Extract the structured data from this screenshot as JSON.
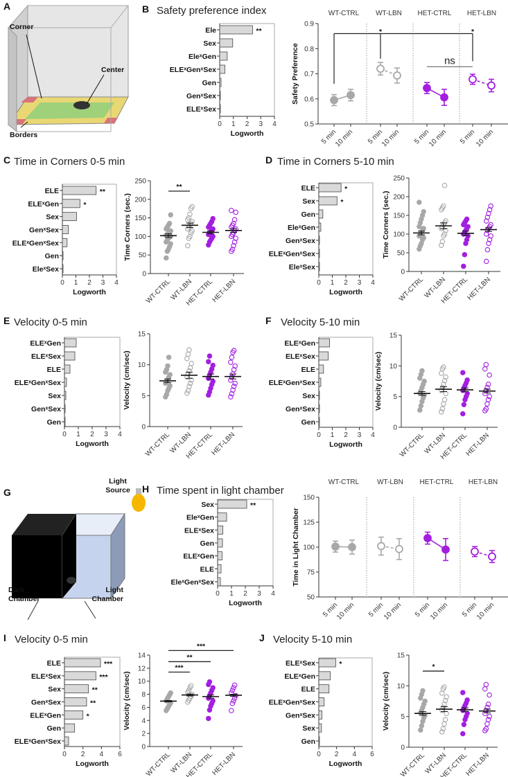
{
  "illustrations": {
    "A": {
      "letter": "A",
      "labels": [
        "Corner",
        "Center",
        "Borders"
      ]
    },
    "G": {
      "letter": "G",
      "labels": [
        "Light",
        "Source",
        "Dark",
        "Chamber",
        "Light",
        "Chamber"
      ]
    }
  },
  "colors": {
    "wt": "#a8a8a8",
    "het": "#a31fe0",
    "bar": "#d9d9d9"
  },
  "chart_data": [
    {
      "panel": "B",
      "letter": "B",
      "title": "Safety preference index",
      "type": "bar",
      "orientation": "horizontal",
      "xlabel": "Logworth",
      "xlim": [
        0,
        4
      ],
      "xticks": [
        "0",
        "1",
        "2",
        "3",
        "4"
      ],
      "categories": [
        "Ele",
        "Sex",
        "EleˣGen",
        "ELEˣGenˣSex",
        "Gen",
        "GenˣSex",
        "ELEˣSex"
      ],
      "values": [
        2.4,
        0.95,
        0.55,
        0.38,
        0.1,
        0.03,
        0.02
      ],
      "significance": [
        "**",
        "",
        "",
        "",
        "",
        "",
        ""
      ]
    },
    {
      "panel": "B",
      "type": "line",
      "ylabel": "Safety Preference",
      "ylim": [
        0.5,
        0.9
      ],
      "yticks": [
        "0.5",
        "0.6",
        "0.7",
        "0.8",
        "0.9"
      ],
      "groups": [
        "WT-CTRL",
        "WT-LBN",
        "HET-CTRL",
        "HET-LBN"
      ],
      "timepoints": [
        "5 min",
        "10 min"
      ],
      "series": [
        {
          "name": "WT-CTRL",
          "values": [
            0.595,
            0.615
          ],
          "sem": [
            0.022,
            0.023
          ],
          "color": "wt",
          "filled": true
        },
        {
          "name": "WT-LBN",
          "values": [
            0.72,
            0.693
          ],
          "sem": [
            0.025,
            0.03
          ],
          "color": "wt",
          "filled": false
        },
        {
          "name": "HET-CTRL",
          "values": [
            0.643,
            0.606
          ],
          "sem": [
            0.022,
            0.032
          ],
          "color": "het",
          "filled": true
        },
        {
          "name": "HET-LBN",
          "values": [
            0.678,
            0.653
          ],
          "sem": [
            0.02,
            0.025
          ],
          "color": "het",
          "filled": false
        }
      ],
      "bracket": {
        "points": [
          0,
          2,
          6
        ],
        "top": 0.86,
        "ends": [
          0.66,
          0.76,
          0.75
        ]
      },
      "annotations": [
        {
          "at": 2,
          "y": 0.875,
          "label": "*"
        },
        {
          "at": 6,
          "y": 0.875,
          "label": "*"
        },
        {
          "from": 4,
          "to": 6,
          "y": 0.728,
          "label": "ns"
        }
      ]
    },
    {
      "panel": "C",
      "letter": "C",
      "title": "Time in Corners 0-5 min",
      "type": "bar",
      "orientation": "horizontal",
      "xlabel": "Logworth",
      "xlim": [
        0,
        4
      ],
      "xticks": [
        "0",
        "1",
        "2",
        "3",
        "4"
      ],
      "categories": [
        "ELE",
        "ELEˣGen",
        "Sex",
        "GenˣSex",
        "ELEˣGenˣSex",
        "Gen",
        "EleˣSex"
      ],
      "values": [
        2.5,
        1.3,
        1.05,
        0.45,
        0.35,
        0.05,
        0.02
      ],
      "significance": [
        "**",
        "*",
        "",
        "",
        "",
        "",
        ""
      ]
    },
    {
      "panel": "C",
      "type": "scatter",
      "ylabel": "Time Corners (sec.)",
      "ylim": [
        0,
        250
      ],
      "yticks": [
        "0",
        "50",
        "100",
        "150",
        "200",
        "250"
      ],
      "categories": [
        "WT-CTRL",
        "WT-LBN",
        "HET-CTRL",
        "HET-LBN"
      ],
      "points": [
        [
          42,
          60,
          65,
          72,
          80,
          85,
          90,
          95,
          98,
          100,
          103,
          105,
          108,
          110,
          115,
          120,
          125,
          130,
          135,
          158
        ],
        [
          75,
          95,
          100,
          110,
          115,
          120,
          125,
          130,
          135,
          140,
          145,
          150,
          160,
          175,
          180
        ],
        [
          77,
          85,
          90,
          95,
          100,
          105,
          110,
          112,
          115,
          120,
          125,
          130,
          135,
          140,
          148
        ],
        [
          60,
          65,
          75,
          85,
          95,
          100,
          105,
          110,
          115,
          120,
          125,
          130,
          135,
          145,
          165,
          170
        ]
      ],
      "means": [
        102,
        130,
        111,
        116
      ],
      "sem": [
        5,
        6,
        4,
        5
      ],
      "brackets": [
        {
          "from": 0,
          "to": 1,
          "y": 222,
          "label": "**"
        }
      ]
    },
    {
      "panel": "D",
      "letter": "D",
      "title": "Time in Corners 5-10 min",
      "type": "bar",
      "orientation": "horizontal",
      "xlabel": "Logworth",
      "xlim": [
        0,
        4
      ],
      "xticks": [
        "0",
        "1",
        "2",
        "3",
        "4"
      ],
      "categories": [
        "ELE",
        "Sex",
        "Gen",
        "EleˣGen",
        "GenˣSex",
        "ELEˣGenˣSex",
        "EleˣSex"
      ],
      "values": [
        1.65,
        1.35,
        0.3,
        0.15,
        0.02,
        0.02,
        0.02
      ],
      "significance": [
        "*",
        "*",
        "",
        "",
        "",
        "",
        ""
      ]
    },
    {
      "panel": "D",
      "type": "scatter",
      "ylabel": "Time Corners (sec.)",
      "ylim": [
        0,
        250
      ],
      "yticks": [
        "0",
        "50",
        "100",
        "150",
        "200",
        "250"
      ],
      "categories": [
        "WT-CTRL",
        "WT-LBN",
        "HET-CTRL",
        "HET-LBN"
      ],
      "points": [
        [
          60,
          68,
          75,
          85,
          90,
          95,
          100,
          105,
          110,
          115,
          120,
          130,
          140,
          150,
          160,
          185
        ],
        [
          70,
          80,
          95,
          100,
          110,
          115,
          120,
          125,
          130,
          135,
          165,
          170,
          175,
          230
        ],
        [
          14,
          45,
          75,
          85,
          95,
          100,
          105,
          110,
          115,
          120,
          125,
          130,
          135,
          140
        ],
        [
          27,
          58,
          75,
          85,
          95,
          100,
          110,
          115,
          120,
          125,
          135,
          145,
          155,
          165,
          175
        ]
      ],
      "means": [
        103,
        122,
        102,
        112
      ],
      "sem": [
        5,
        8,
        6,
        5
      ],
      "brackets": []
    },
    {
      "panel": "E",
      "letter": "E",
      "title": "Velocity 0-5 min",
      "type": "bar",
      "orientation": "horizontal",
      "xlabel": "Logworth",
      "xlim": [
        0,
        4
      ],
      "xticks": [
        "0",
        "1",
        "2",
        "3",
        "4"
      ],
      "categories": [
        "ELEˣGen",
        "ELEˣSex",
        "ELE",
        "ELEˣGenˣSex",
        "Sex",
        "GenˣSex",
        "Gen"
      ],
      "values": [
        0.85,
        0.75,
        0.4,
        0.15,
        0.1,
        0.05,
        0.05
      ],
      "significance": [
        "",
        "",
        "",
        "",
        "",
        "",
        ""
      ]
    },
    {
      "panel": "E",
      "type": "scatter",
      "ylabel": "Velocity  (cm/sec)",
      "ylim": [
        0,
        15
      ],
      "yticks": [
        "0",
        "5",
        "10",
        "15"
      ],
      "categories": [
        "WT-CTRL",
        "WT-LBN",
        "HET-CTRL",
        "HET-LBN"
      ],
      "points": [
        [
          4.8,
          5.2,
          5.8,
          6.2,
          6.6,
          7,
          7.3,
          7.6,
          8,
          8.4,
          8.8,
          9.2,
          9.8,
          11.2
        ],
        [
          5.4,
          5.8,
          6.5,
          7,
          7.5,
          8,
          8.5,
          9,
          9.5,
          10.2,
          11,
          11.7,
          12.4
        ],
        [
          5.1,
          5.6,
          6.2,
          6.8,
          7.3,
          7.8,
          8.3,
          8.8,
          9.3,
          9.9,
          10.5,
          11.4
        ],
        [
          4.8,
          5.3,
          5.9,
          6.5,
          7,
          7.5,
          8,
          8.5,
          9.2,
          9.8,
          10.4,
          11.2,
          12,
          12.3
        ]
      ],
      "means": [
        7.4,
        8.3,
        8.1,
        8.1
      ],
      "sem": [
        0.3,
        0.5,
        0.4,
        0.4
      ],
      "brackets": []
    },
    {
      "panel": "F",
      "letter": "F",
      "title": "Velocity 5-10 min",
      "type": "bar",
      "orientation": "horizontal",
      "xlabel": "Logworth",
      "xlim": [
        0,
        4
      ],
      "xticks": [
        "0",
        "1",
        "2",
        "3",
        "4"
      ],
      "categories": [
        "ELEˣGen",
        "ELEˣSex",
        "ELE",
        "ELEˣGenˣSex",
        "Sex",
        "GenˣSex",
        "Gen"
      ],
      "values": [
        0.8,
        0.7,
        0.35,
        0.15,
        0.05,
        0.03,
        0.03
      ],
      "significance": [
        "",
        "",
        "",
        "",
        "",
        "",
        ""
      ]
    },
    {
      "panel": "F",
      "type": "scatter",
      "ylabel": "Velocity  (cm/sec)",
      "ylim": [
        0,
        15
      ],
      "yticks": [
        "0",
        "5",
        "10",
        "15"
      ],
      "categories": [
        "WT-CTRL",
        "WT-LBN",
        "HET-CTRL",
        "HET-LBN"
      ],
      "points": [
        [
          2.8,
          3.5,
          4.2,
          4.8,
          5.2,
          5.6,
          6,
          6.5,
          7,
          7.5,
          8,
          8.6,
          9.2
        ],
        [
          2.5,
          3,
          3.8,
          4.5,
          5.5,
          6,
          6.5,
          7,
          7.6,
          8.2,
          8.8,
          9.5,
          9.8
        ],
        [
          2.2,
          3.7,
          4.5,
          5,
          5.5,
          6,
          6.4,
          6.8,
          7.2,
          7.7,
          8.9
        ],
        [
          2.7,
          3,
          3.8,
          4.5,
          5,
          5.5,
          6,
          6.5,
          7,
          8.5,
          9.5,
          10.2
        ]
      ],
      "means": [
        5.5,
        6.2,
        6.1,
        5.9
      ],
      "sem": [
        0.3,
        0.4,
        0.3,
        0.3
      ],
      "brackets": []
    },
    {
      "panel": "H",
      "letter": "H",
      "title": "Time spent in light chamber",
      "type": "bar",
      "orientation": "horizontal",
      "xlabel": "Logworth",
      "xlim": [
        0,
        4
      ],
      "xticks": [
        "0",
        "1",
        "2",
        "3",
        "4"
      ],
      "categories": [
        "Sex",
        "EleˣGen",
        "ELEˣSex",
        "Gen",
        "ELEˣGen",
        "ELE",
        "EleˣGenˣSex"
      ],
      "values": [
        2.1,
        0.65,
        0.38,
        0.35,
        0.32,
        0.25,
        0.2
      ],
      "significance": [
        "**",
        "",
        "",
        "",
        "",
        "",
        ""
      ]
    },
    {
      "panel": "H",
      "type": "line",
      "ylabel": "Time in  Light Chamber",
      "ylim": [
        50,
        150
      ],
      "yticks": [
        "50",
        "75",
        "100",
        "125",
        "150"
      ],
      "groups": [
        "WT-CTRL",
        "WT-LBN",
        "HET-CTRL",
        "HET-LBN"
      ],
      "timepoints": [
        "5 min",
        "10 min"
      ],
      "series": [
        {
          "name": "WT-CTRL",
          "values": [
            100.5,
            100
          ],
          "sem": [
            5.5,
            7
          ],
          "color": "wt",
          "filled": true
        },
        {
          "name": "WT-LBN",
          "values": [
            101,
            98
          ],
          "sem": [
            9,
            10.5
          ],
          "color": "wt",
          "filled": false
        },
        {
          "name": "HET-CTRL",
          "values": [
            109,
            97.5
          ],
          "sem": [
            6,
            11
          ],
          "color": "het",
          "filled": true
        },
        {
          "name": "HET-LBN",
          "values": [
            95.5,
            90.5
          ],
          "sem": [
            5,
            6
          ],
          "color": "het",
          "filled": false
        }
      ]
    },
    {
      "panel": "I",
      "letter": "I",
      "title": "Velocity 0-5 min",
      "type": "bar",
      "orientation": "horizontal",
      "xlabel": "Logworth",
      "xlim": [
        0,
        6
      ],
      "xticks": [
        "0",
        "2",
        "4",
        "6"
      ],
      "categories": [
        "ELE",
        "ELEˣSex",
        "Sex",
        "GenˣSex",
        "ELEˣGen",
        "Gen",
        "ELEˣGenˣSex"
      ],
      "values": [
        3.9,
        3.4,
        2.6,
        2.4,
        2.0,
        1.1,
        0.45
      ],
      "significance": [
        "***",
        "***",
        "**",
        "**",
        "*",
        "",
        ""
      ]
    },
    {
      "panel": "I",
      "type": "scatter",
      "ylabel": "Velocity  (cm/sec)",
      "ylim": [
        0,
        14
      ],
      "yticks": [
        "0",
        "2",
        "4",
        "6",
        "8",
        "10",
        "12",
        "14"
      ],
      "categories": [
        "WT-CTRL",
        "WT-LBN",
        "HET-CTRL",
        "HET-LBN"
      ],
      "points": [
        [
          5.5,
          5.8,
          6.1,
          6.4,
          6.7,
          7,
          7.3,
          7.6,
          7.9,
          8.2
        ],
        [
          6.8,
          7.1,
          7.4,
          7.7,
          8,
          8.3,
          8.6,
          9,
          9.3
        ],
        [
          4.3,
          5.6,
          6.2,
          6.6,
          7,
          7.4,
          7.8,
          8.2,
          8.6,
          9,
          9.5,
          9.9
        ],
        [
          5.5,
          6.6,
          7,
          7.4,
          7.8,
          8.2,
          8.6,
          9,
          9.4
        ]
      ],
      "means": [
        6.95,
        7.9,
        7.65,
        7.85
      ],
      "sem": [
        0.1,
        0.15,
        0.25,
        0.15
      ],
      "brackets": [
        {
          "from": 0,
          "to": 1,
          "y": 11.4,
          "label": "***"
        },
        {
          "from": 0,
          "to": 2,
          "y": 13.0,
          "label": "**"
        },
        {
          "from": 0,
          "to": 3,
          "y": 14.7,
          "label": "***"
        }
      ]
    },
    {
      "panel": "J",
      "letter": "J",
      "title": "Velocity 5-10 min",
      "type": "bar",
      "orientation": "horizontal",
      "xlabel": "Logworth",
      "xlim": [
        0,
        6
      ],
      "xticks": [
        "0",
        "2",
        "4",
        "6"
      ],
      "categories": [
        "ELEˣSex",
        "ELEˣGen",
        "ELE",
        "ELEˣGenˣSex",
        "GenˣSex",
        "Sex",
        "Gen"
      ],
      "values": [
        1.9,
        1.3,
        1.15,
        0.6,
        0.35,
        0.3,
        0.02
      ],
      "significance": [
        "*",
        "",
        "",
        "",
        "",
        "",
        ""
      ]
    },
    {
      "panel": "J",
      "type": "scatter",
      "ylabel": "Velocity  (cm/sec)",
      "ylim": [
        0,
        15
      ],
      "yticks": [
        "0",
        "5",
        "10",
        "15"
      ],
      "categories": [
        "WT-CTRL",
        "WT-LBN",
        "HET-CTRL",
        "HET-LBN"
      ],
      "points": [
        [
          2.8,
          3.5,
          4.2,
          4.8,
          5.2,
          5.6,
          6,
          6.5,
          7,
          7.5,
          8,
          8.6,
          9.2
        ],
        [
          2.5,
          3,
          3.8,
          4.5,
          5.5,
          6,
          6.5,
          7,
          7.6,
          8.2,
          8.8,
          9.5,
          9.8
        ],
        [
          2.2,
          3.7,
          4.5,
          5,
          5.5,
          6,
          6.4,
          6.8,
          7.2,
          7.7,
          8.9
        ],
        [
          2.7,
          3,
          3.8,
          4.5,
          5,
          5.5,
          6,
          6.5,
          7,
          8.5,
          9.5,
          10.2
        ]
      ],
      "means": [
        5.5,
        6.2,
        6.1,
        5.9
      ],
      "sem": [
        0.3,
        0.4,
        0.3,
        0.3
      ],
      "brackets": [
        {
          "from": 0,
          "to": 1,
          "y": 12.4,
          "label": "*"
        }
      ]
    }
  ]
}
